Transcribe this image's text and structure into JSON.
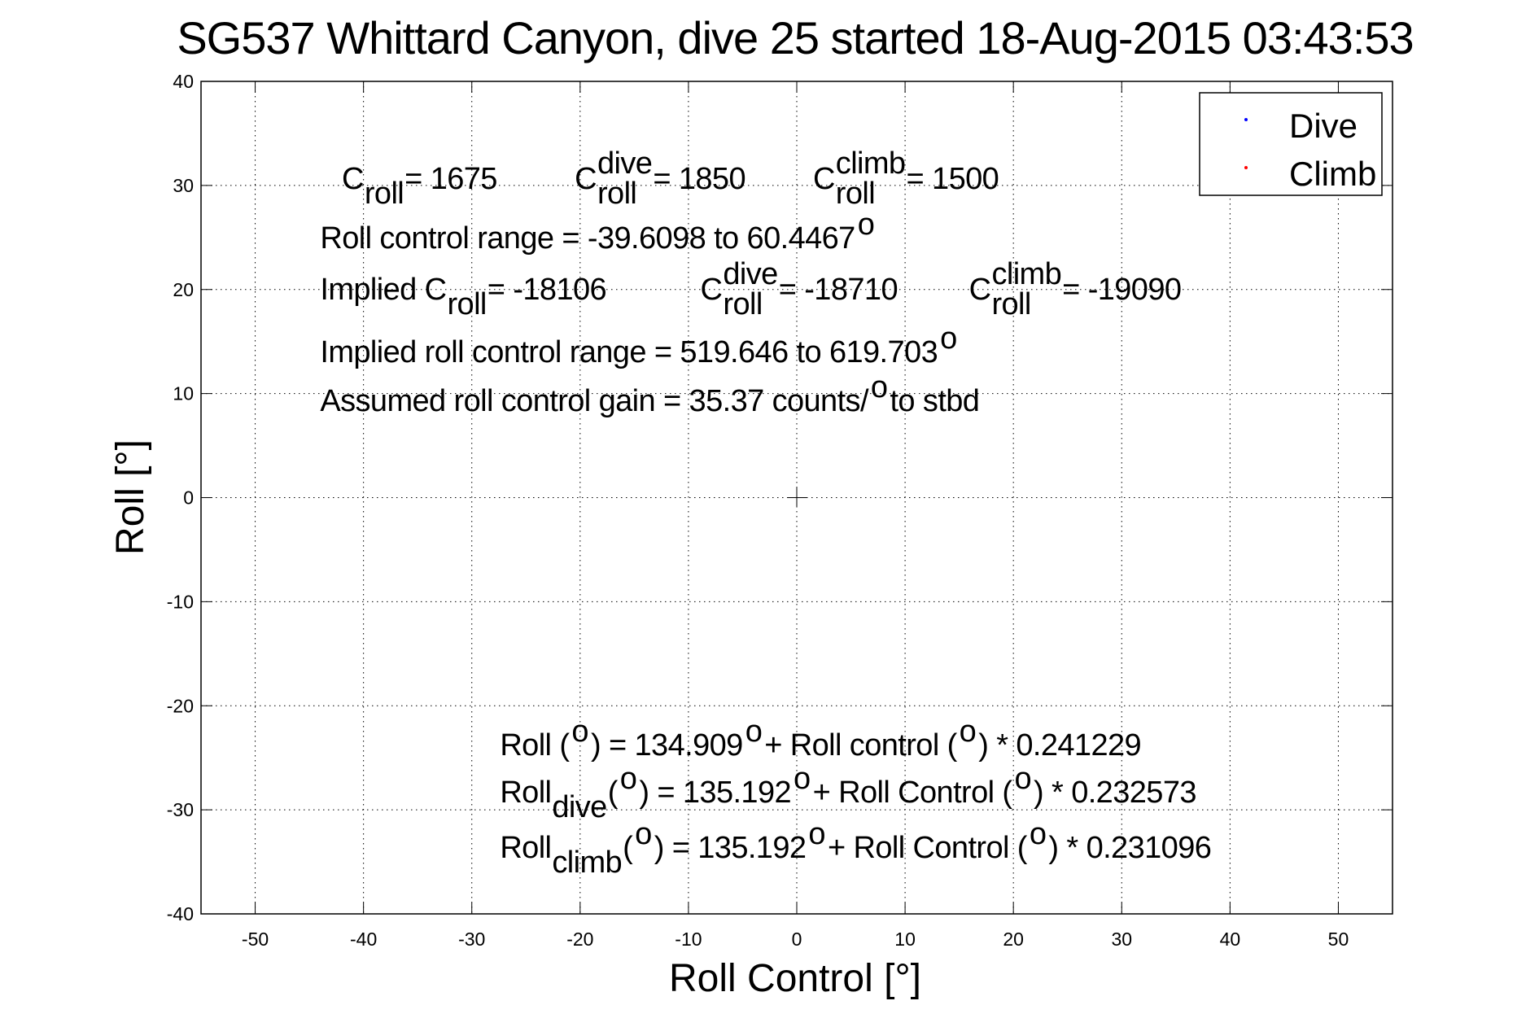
{
  "chart_data": {
    "type": "scatter",
    "title": "SG537 Whittard Canyon, dive 25 started 18-Aug-2015 03:43:53",
    "xlabel": "Roll Control [°]",
    "ylabel": "Roll [°]",
    "xlim": [
      -55,
      55
    ],
    "ylim": [
      -40,
      40
    ],
    "xticks": [
      -50,
      -40,
      -30,
      -20,
      -10,
      0,
      10,
      20,
      30,
      40,
      50
    ],
    "yticks": [
      -40,
      -30,
      -20,
      -10,
      0,
      10,
      20,
      30,
      40
    ],
    "grid": true,
    "legend": {
      "placement": "top-right",
      "entries": [
        {
          "label": "Dive",
          "color": "#0000ff"
        },
        {
          "label": "Climb",
          "color": "#ff0000"
        }
      ]
    },
    "series": [
      {
        "name": "Dive",
        "color": "#0000ff",
        "points": []
      },
      {
        "name": "Climb",
        "color": "#ff0000",
        "points": []
      }
    ],
    "origin_marker": {
      "x": 0,
      "y": 0,
      "symbol": "+"
    },
    "annotations": [
      {
        "anchor": [
          -42,
          30.9
        ],
        "segments": [
          {
            "t": "C"
          },
          {
            "sub": "roll"
          },
          {
            "t": " = 1675"
          }
        ]
      },
      {
        "anchor": [
          -20.5,
          30.9
        ],
        "segments": [
          {
            "t": "C"
          },
          {
            "sup": "dive",
            "sub": "roll"
          },
          {
            "t": " = 1850"
          }
        ]
      },
      {
        "anchor": [
          1.5,
          30.9
        ],
        "segments": [
          {
            "t": "C"
          },
          {
            "sup": "climb",
            "sub": "roll"
          },
          {
            "t": " = 1500"
          }
        ]
      },
      {
        "anchor": [
          -44,
          24.8
        ],
        "segments": [
          {
            "t": "Roll control range = -39.6098 to 60.4467 "
          },
          {
            "sup": "o"
          }
        ]
      },
      {
        "anchor": [
          -44,
          21.2
        ],
        "segments": [
          {
            "t": "Implied C"
          },
          {
            "sub": "roll"
          },
          {
            "t": " = -18106"
          }
        ]
      },
      {
        "anchor": [
          -8.9,
          21.2
        ],
        "segments": [
          {
            "t": "C"
          },
          {
            "sup": "dive",
            "sub": "roll"
          },
          {
            "t": " = -18710"
          }
        ]
      },
      {
        "anchor": [
          15.9,
          21.2
        ],
        "segments": [
          {
            "t": "C"
          },
          {
            "sup": "climb",
            "sub": "roll"
          },
          {
            "t": " = -19090"
          }
        ]
      },
      {
        "anchor": [
          -44,
          15.4
        ],
        "segments": [
          {
            "t": "Implied roll control range = 519.646 to 619.703 "
          },
          {
            "sup": "o"
          }
        ]
      },
      {
        "anchor": [
          -44,
          11.1
        ],
        "segments": [
          {
            "t": "Assumed roll control gain = 35.37 counts/"
          },
          {
            "sup": "o"
          },
          {
            "t": " to stbd"
          }
        ]
      },
      {
        "anchor": [
          -27.4,
          -25.2
        ],
        "segments": [
          {
            "t": "Roll ("
          },
          {
            "sup": "o"
          },
          {
            "t": ") = 134.909 "
          },
          {
            "sup": "o"
          },
          {
            "t": " + Roll control ("
          },
          {
            "sup": "o"
          },
          {
            "t": ") * 0.241229"
          }
        ]
      },
      {
        "anchor": [
          -27.4,
          -28.6
        ],
        "segments": [
          {
            "t": "Roll"
          },
          {
            "sub": "dive"
          },
          {
            "t": " ("
          },
          {
            "sup": "o"
          },
          {
            "t": ") = 135.192 "
          },
          {
            "sup": "o"
          },
          {
            "t": " + Roll Control ("
          },
          {
            "sup": "o"
          },
          {
            "t": ") * 0.232573"
          }
        ]
      },
      {
        "anchor": [
          -27.4,
          -33.6
        ],
        "segments": [
          {
            "t": "Roll"
          },
          {
            "sub": "climb"
          },
          {
            "t": " ("
          },
          {
            "sup": "o"
          },
          {
            "t": ") = 135.192 "
          },
          {
            "sup": "o"
          },
          {
            "t": " + Roll Control ("
          },
          {
            "sup": "o"
          },
          {
            "t": ") * 0.231096"
          }
        ]
      }
    ]
  }
}
